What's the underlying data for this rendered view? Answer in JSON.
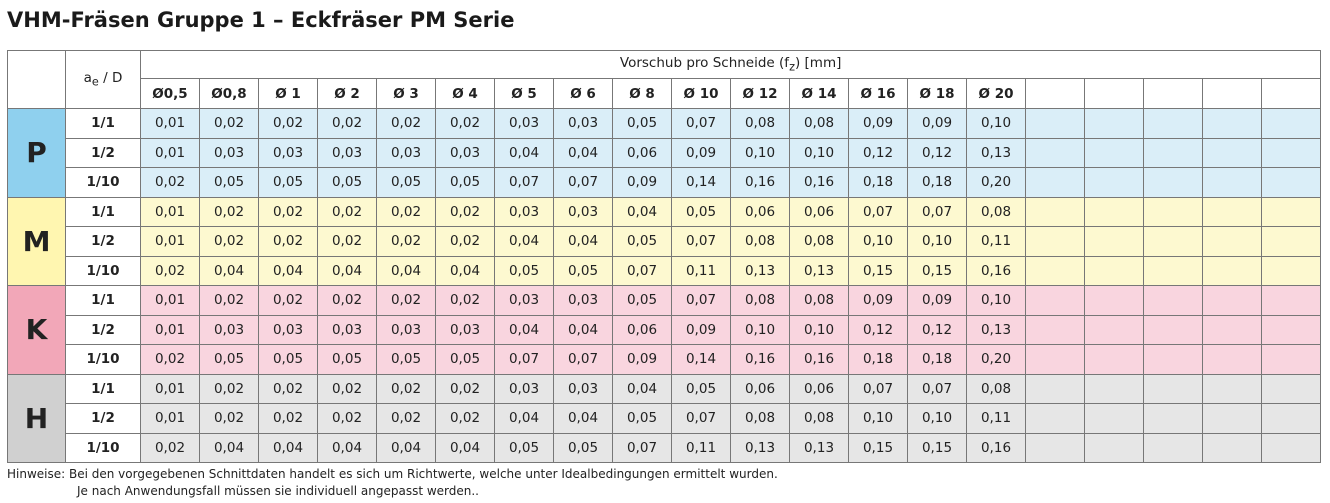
{
  "title": "VHM-Fräsen Gruppe 1 – Eckfräser PM Serie",
  "header": {
    "ratio": {
      "base": "a",
      "sub": "e",
      "rest": " / D"
    },
    "feed": {
      "before": "Vorschub pro Schneide (f",
      "sub": "z",
      "after": ") [mm]"
    },
    "diameters": [
      "Ø0,5",
      "Ø0,8",
      "Ø 1",
      "Ø 2",
      "Ø 3",
      "Ø 4",
      "Ø 5",
      "Ø 6",
      "Ø 8",
      "Ø 10",
      "Ø 12",
      "Ø 14",
      "Ø 16",
      "Ø 18",
      "Ø 20"
    ]
  },
  "groups": [
    {
      "material": "P",
      "rows": [
        {
          "ratio": "1/1",
          "values": [
            "0,01",
            "0,02",
            "0,02",
            "0,02",
            "0,02",
            "0,02",
            "0,03",
            "0,03",
            "0,05",
            "0,07",
            "0,08",
            "0,08",
            "0,09",
            "0,09",
            "0,10"
          ]
        },
        {
          "ratio": "1/2",
          "values": [
            "0,01",
            "0,03",
            "0,03",
            "0,03",
            "0,03",
            "0,03",
            "0,04",
            "0,04",
            "0,06",
            "0,09",
            "0,10",
            "0,10",
            "0,12",
            "0,12",
            "0,13"
          ]
        },
        {
          "ratio": "1/10",
          "values": [
            "0,02",
            "0,05",
            "0,05",
            "0,05",
            "0,05",
            "0,05",
            "0,07",
            "0,07",
            "0,09",
            "0,14",
            "0,16",
            "0,16",
            "0,18",
            "0,18",
            "0,20"
          ]
        }
      ]
    },
    {
      "material": "M",
      "rows": [
        {
          "ratio": "1/1",
          "values": [
            "0,01",
            "0,02",
            "0,02",
            "0,02",
            "0,02",
            "0,02",
            "0,03",
            "0,03",
            "0,04",
            "0,05",
            "0,06",
            "0,06",
            "0,07",
            "0,07",
            "0,08"
          ]
        },
        {
          "ratio": "1/2",
          "values": [
            "0,01",
            "0,02",
            "0,02",
            "0,02",
            "0,02",
            "0,02",
            "0,04",
            "0,04",
            "0,05",
            "0,07",
            "0,08",
            "0,08",
            "0,10",
            "0,10",
            "0,11"
          ]
        },
        {
          "ratio": "1/10",
          "values": [
            "0,02",
            "0,04",
            "0,04",
            "0,04",
            "0,04",
            "0,04",
            "0,05",
            "0,05",
            "0,07",
            "0,11",
            "0,13",
            "0,13",
            "0,15",
            "0,15",
            "0,16"
          ]
        }
      ]
    },
    {
      "material": "K",
      "rows": [
        {
          "ratio": "1/1",
          "values": [
            "0,01",
            "0,02",
            "0,02",
            "0,02",
            "0,02",
            "0,02",
            "0,03",
            "0,03",
            "0,05",
            "0,07",
            "0,08",
            "0,08",
            "0,09",
            "0,09",
            "0,10"
          ]
        },
        {
          "ratio": "1/2",
          "values": [
            "0,01",
            "0,03",
            "0,03",
            "0,03",
            "0,03",
            "0,03",
            "0,04",
            "0,04",
            "0,06",
            "0,09",
            "0,10",
            "0,10",
            "0,12",
            "0,12",
            "0,13"
          ]
        },
        {
          "ratio": "1/10",
          "values": [
            "0,02",
            "0,05",
            "0,05",
            "0,05",
            "0,05",
            "0,05",
            "0,07",
            "0,07",
            "0,09",
            "0,14",
            "0,16",
            "0,16",
            "0,18",
            "0,18",
            "0,20"
          ]
        }
      ]
    },
    {
      "material": "H",
      "rows": [
        {
          "ratio": "1/1",
          "values": [
            "0,01",
            "0,02",
            "0,02",
            "0,02",
            "0,02",
            "0,02",
            "0,03",
            "0,03",
            "0,04",
            "0,05",
            "0,06",
            "0,06",
            "0,07",
            "0,07",
            "0,08"
          ]
        },
        {
          "ratio": "1/2",
          "values": [
            "0,01",
            "0,02",
            "0,02",
            "0,02",
            "0,02",
            "0,02",
            "0,04",
            "0,04",
            "0,05",
            "0,07",
            "0,08",
            "0,08",
            "0,10",
            "0,10",
            "0,11"
          ]
        },
        {
          "ratio": "1/10",
          "values": [
            "0,02",
            "0,04",
            "0,04",
            "0,04",
            "0,04",
            "0,04",
            "0,05",
            "0,05",
            "0,07",
            "0,11",
            "0,13",
            "0,13",
            "0,15",
            "0,15",
            "0,16"
          ]
        }
      ]
    }
  ],
  "notes": {
    "label": "Hinweise:",
    "lines": [
      "Bei den vorgegebenen Schnittdaten handelt es sich um Richtwerte, welche unter Idealbedingungen ermittelt wurden.",
      "Je nach Anwendungsfall müssen sie individuell angepasst werden.."
    ]
  }
}
